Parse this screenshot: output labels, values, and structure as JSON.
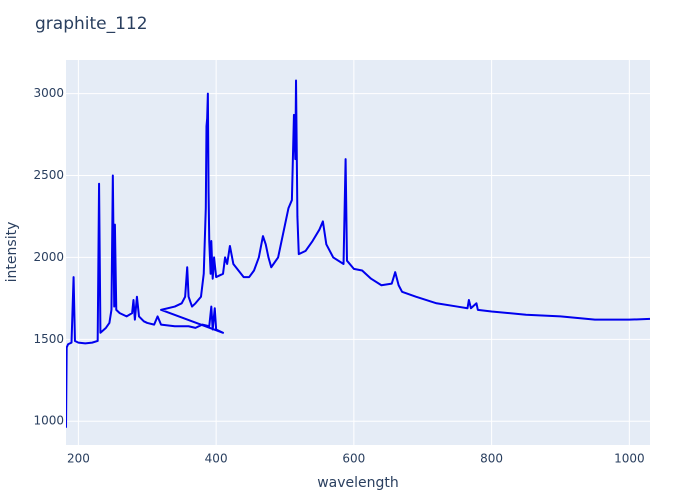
{
  "chart_data": {
    "type": "line",
    "title": "graphite_112",
    "xlabel": "wavelength",
    "ylabel": "intensity",
    "x": [
      182,
      183,
      185,
      190,
      193,
      195,
      200,
      210,
      220,
      228,
      230,
      232,
      240,
      245,
      248,
      250,
      252,
      253,
      255,
      260,
      270,
      278,
      280,
      282,
      285,
      288,
      295,
      300,
      310,
      315,
      320,
      340,
      360,
      370,
      380,
      390,
      393,
      395,
      398,
      400,
      410,
      320,
      340,
      350,
      355,
      358,
      360,
      365,
      370,
      378,
      382,
      385,
      386,
      387,
      388,
      389,
      390,
      392,
      393,
      395,
      397,
      400,
      410,
      413,
      416,
      420,
      425,
      440,
      448,
      455,
      462,
      468,
      472,
      476,
      480,
      490,
      500,
      505,
      510,
      513,
      515,
      516,
      518,
      520,
      530,
      540,
      550,
      555,
      560,
      570,
      585,
      588,
      590,
      600,
      612,
      625,
      640,
      655,
      660,
      665,
      670,
      690,
      720,
      750,
      765,
      767,
      770,
      778,
      780,
      800,
      850,
      900,
      950,
      1000,
      1030
    ],
    "series": [
      {
        "name": "intensity",
        "color": "#0000ee",
        "values": [
          960,
          1450,
          1470,
          1480,
          1880,
          1490,
          1480,
          1475,
          1480,
          1490,
          2450,
          1540,
          1570,
          1600,
          1680,
          2500,
          1700,
          2200,
          1680,
          1660,
          1640,
          1660,
          1740,
          1620,
          1760,
          1640,
          1610,
          1600,
          1590,
          1640,
          1590,
          1580,
          1580,
          1570,
          1590,
          1580,
          1700,
          1560,
          1690,
          1560,
          1540,
          1680,
          1700,
          1720,
          1760,
          1940,
          1760,
          1700,
          1720,
          1760,
          1900,
          2300,
          2800,
          2850,
          3000,
          2400,
          2100,
          1900,
          2100,
          1870,
          2000,
          1880,
          1900,
          2000,
          1960,
          2070,
          1960,
          1880,
          1880,
          1920,
          2000,
          2130,
          2080,
          2000,
          1940,
          2000,
          2200,
          2300,
          2350,
          2870,
          2600,
          3080,
          2250,
          2020,
          2040,
          2100,
          2170,
          2220,
          2080,
          2000,
          1960,
          2600,
          1980,
          1930,
          1920,
          1870,
          1830,
          1840,
          1910,
          1830,
          1790,
          1760,
          1720,
          1700,
          1690,
          1740,
          1690,
          1720,
          1680,
          1670,
          1650,
          1640,
          1620,
          1620,
          1625
        ]
      }
    ],
    "xlim": [
      182,
      1030
    ],
    "ylim": [
      855,
      3205
    ],
    "xticks": [
      200,
      400,
      600,
      800,
      1000
    ],
    "yticks": [
      1000,
      1500,
      2000,
      2500,
      3000
    ],
    "grid": true
  }
}
